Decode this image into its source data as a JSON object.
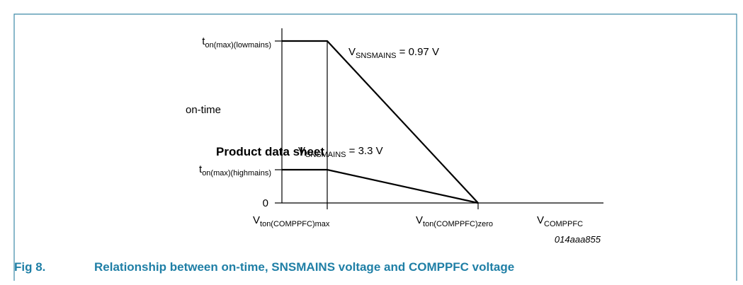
{
  "y_labels": {
    "low": {
      "base": "t",
      "sub": "on(max)(lowmains)"
    },
    "axis_title": "on-time",
    "high": {
      "base": "t",
      "sub": "on(max)(highmains)"
    },
    "zero": "0"
  },
  "curves": {
    "low": {
      "base": "V",
      "sub": "SNSMAINS",
      "rest": " = 0.97 V"
    },
    "high": {
      "base": "V",
      "sub": "SNSMAINS",
      "rest": " = 3.3 V"
    }
  },
  "watermark": "Product data sheet",
  "x_labels": {
    "max": {
      "base": "V",
      "sub": "ton(COMPPFC)max"
    },
    "zero": {
      "base": "V",
      "sub": "ton(COMPPFC)zero"
    },
    "axis_title": {
      "base": "V",
      "sub": "COMPPFC"
    }
  },
  "code": "014aaa855",
  "caption": {
    "number": "Fig 8.",
    "text": "Relationship between on-time, SNSMAINS voltage and COMPPFC voltage"
  }
}
